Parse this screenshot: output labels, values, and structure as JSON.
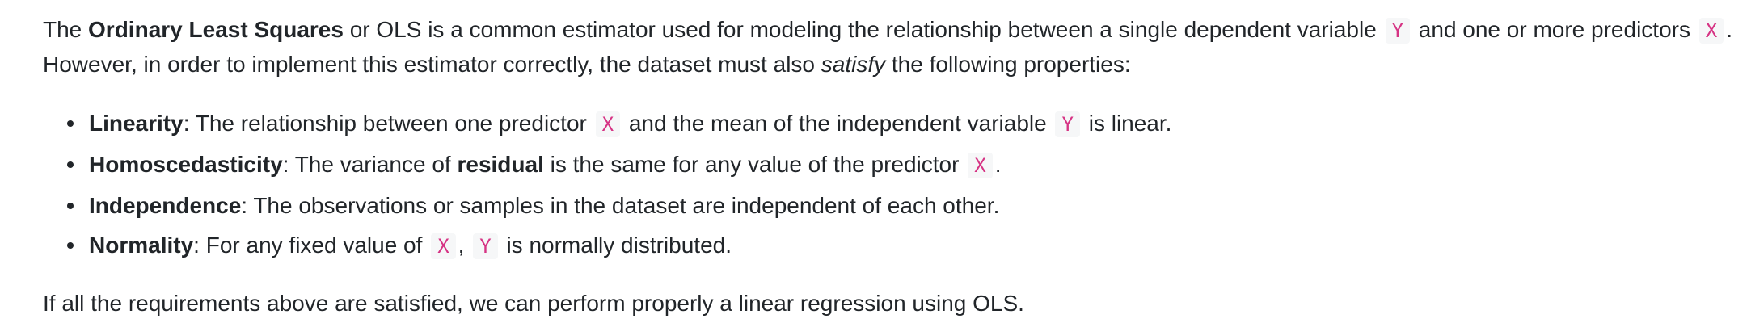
{
  "intro": {
    "t1": "The ",
    "b1": "Ordinary Least Squares",
    "t2": " or OLS is a common estimator used for modeling the relationship between a single dependent variable ",
    "c1": "Y",
    "t3": " and one or more predictors ",
    "c2": "X",
    "t4": ". However, in order to implement this estimator correctly, the dataset must also ",
    "i1": "satisfy",
    "t5": " the following properties:"
  },
  "properties": [
    {
      "term": "Linearity",
      "t1": ": The relationship between one predictor ",
      "c1": "X",
      "t2": " and the mean of the independent variable ",
      "c2": "Y",
      "t3": " is linear."
    },
    {
      "term": "Homoscedasticity",
      "t1": ": The variance of ",
      "b1": "residual",
      "t2": " is the same for any value of the predictor ",
      "c1": "X",
      "t3": "."
    },
    {
      "term": "Independence",
      "t1": ": The observations or samples in the dataset are independent of each other."
    },
    {
      "term": "Normality",
      "t1": ": For any fixed value of ",
      "c1": "X",
      "t2": ", ",
      "c2": "Y",
      "t3": " is normally distributed."
    }
  ],
  "conclusion": "If all the requirements above are satisfied, we can perform properly a linear regression using OLS."
}
